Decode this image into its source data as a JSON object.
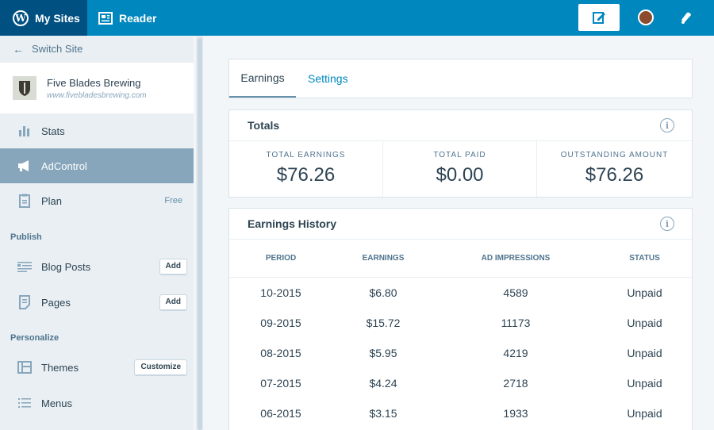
{
  "masterbar": {
    "my_sites": "My Sites",
    "reader": "Reader"
  },
  "sidebar": {
    "switch_site": "Switch Site",
    "site": {
      "name": "Five Blades Brewing",
      "url": "www.fivebladesbrewing.com"
    },
    "items": {
      "stats": "Stats",
      "adcontrol": "AdControl",
      "plan": "Plan",
      "plan_badge": "Free",
      "blog_posts": "Blog Posts",
      "blog_posts_btn": "Add",
      "pages": "Pages",
      "pages_btn": "Add",
      "themes": "Themes",
      "themes_btn": "Customize",
      "menus": "Menus"
    },
    "sections": {
      "publish": "Publish",
      "personalize": "Personalize"
    }
  },
  "tabs": {
    "earnings": "Earnings",
    "settings": "Settings"
  },
  "totals": {
    "title": "Totals",
    "total_earnings_label": "TOTAL EARNINGS",
    "total_earnings": "$76.26",
    "total_paid_label": "TOTAL PAID",
    "total_paid": "$0.00",
    "outstanding_label": "OUTSTANDING AMOUNT",
    "outstanding": "$76.26"
  },
  "history": {
    "title": "Earnings History",
    "columns": [
      "PERIOD",
      "EARNINGS",
      "AD IMPRESSIONS",
      "STATUS"
    ],
    "rows": [
      [
        "10-2015",
        "$6.80",
        "4589",
        "Unpaid"
      ],
      [
        "09-2015",
        "$15.72",
        "11173",
        "Unpaid"
      ],
      [
        "08-2015",
        "$5.95",
        "4219",
        "Unpaid"
      ],
      [
        "07-2015",
        "$4.24",
        "2718",
        "Unpaid"
      ],
      [
        "06-2015",
        "$3.15",
        "1933",
        "Unpaid"
      ]
    ]
  },
  "colors": {
    "brand": "#0087be",
    "brand_dark": "#005082",
    "active_nav": "#87a6bc"
  }
}
